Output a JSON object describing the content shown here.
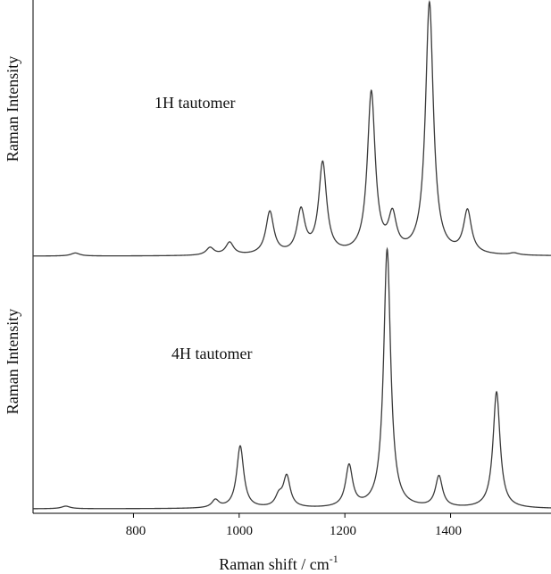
{
  "chart_data": [
    {
      "type": "line",
      "title": "",
      "annotation": "1H tautomer",
      "xlabel": "",
      "ylabel": "Raman Intensity",
      "xlim": [
        610,
        1590
      ],
      "ylim": [
        0,
        1
      ],
      "line_color": "#3a3a3a",
      "peaks": [
        {
          "x": 690,
          "height": 0.012,
          "width": 10
        },
        {
          "x": 945,
          "height": 0.03,
          "width": 9
        },
        {
          "x": 982,
          "height": 0.05,
          "width": 9
        },
        {
          "x": 1058,
          "height": 0.17,
          "width": 9
        },
        {
          "x": 1117,
          "height": 0.17,
          "width": 9
        },
        {
          "x": 1158,
          "height": 0.36,
          "width": 9
        },
        {
          "x": 1250,
          "height": 0.64,
          "width": 9
        },
        {
          "x": 1290,
          "height": 0.14,
          "width": 9
        },
        {
          "x": 1360,
          "height": 1.0,
          "width": 9
        },
        {
          "x": 1432,
          "height": 0.17,
          "width": 9
        },
        {
          "x": 1520,
          "height": 0.008,
          "width": 10
        }
      ]
    },
    {
      "type": "line",
      "title": "",
      "annotation": "4H tautomer",
      "xlabel": "Raman shift / cm",
      "xlabel_superscript": "-1",
      "ylabel": "Raman Intensity",
      "xlim": [
        610,
        1590
      ],
      "ylim": [
        0,
        1
      ],
      "line_color": "#3a3a3a",
      "x_ticks": [
        "800",
        "1000",
        "1200",
        "1400"
      ],
      "peaks": [
        {
          "x": 672,
          "height": 0.01,
          "width": 10
        },
        {
          "x": 955,
          "height": 0.03,
          "width": 8
        },
        {
          "x": 1002,
          "height": 0.24,
          "width": 8
        },
        {
          "x": 1075,
          "height": 0.04,
          "width": 8
        },
        {
          "x": 1090,
          "height": 0.12,
          "width": 8
        },
        {
          "x": 1208,
          "height": 0.16,
          "width": 8
        },
        {
          "x": 1280,
          "height": 1.0,
          "width": 8
        },
        {
          "x": 1378,
          "height": 0.12,
          "width": 8
        },
        {
          "x": 1487,
          "height": 0.45,
          "width": 8
        }
      ]
    }
  ]
}
